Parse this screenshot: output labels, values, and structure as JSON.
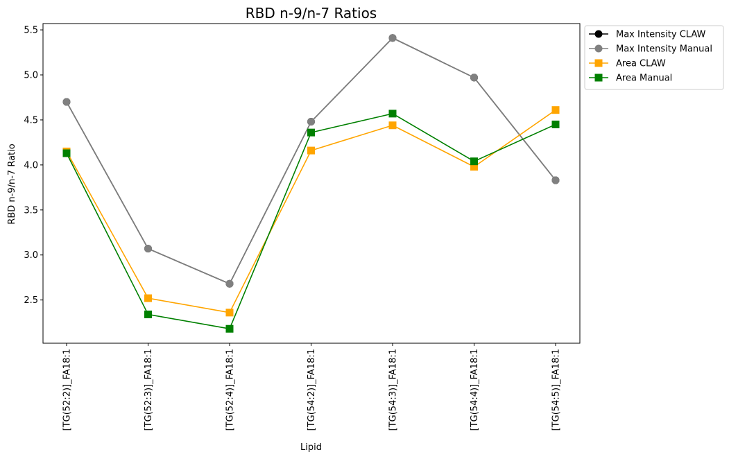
{
  "chart_data": {
    "type": "line",
    "title": "RBD n-9/n-7 Ratios",
    "xlabel": "Lipid",
    "ylabel": "RBD n-9/n-7 Ratio",
    "categories": [
      "[TG(52:2)]_FA18:1",
      "[TG(52:3)]_FA18:1",
      "[TG(52:4)]_FA18:1",
      "[TG(54:2)]_FA18:1",
      "[TG(54:3)]_FA18:1",
      "[TG(54:4)]_FA18:1",
      "[TG(54:5)]_FA18:1"
    ],
    "ylim": [
      2.02,
      5.57
    ],
    "yticks": [
      2.5,
      3.0,
      3.5,
      4.0,
      4.5,
      5.0,
      5.5
    ],
    "ytick_labels": [
      "2.5",
      "3.0",
      "3.5",
      "4.0",
      "4.5",
      "5.0",
      "5.5"
    ],
    "grid": false,
    "legend_position": "outside-top-right",
    "series": [
      {
        "name": "Max Intensity CLAW",
        "color": "#000000",
        "marker": "circle",
        "values": [
          4.7,
          3.07,
          2.68,
          4.48,
          5.41,
          4.97,
          3.83
        ]
      },
      {
        "name": "Max Intensity Manual",
        "color": "#808080",
        "marker": "circle",
        "values": [
          4.7,
          3.07,
          2.68,
          4.48,
          5.41,
          4.97,
          3.83
        ]
      },
      {
        "name": "Area CLAW",
        "color": "#ffa500",
        "marker": "square",
        "values": [
          4.15,
          2.52,
          2.36,
          4.16,
          4.44,
          3.98,
          4.61
        ]
      },
      {
        "name": "Area Manual",
        "color": "#008000",
        "marker": "square",
        "values": [
          4.13,
          2.34,
          2.18,
          4.36,
          4.57,
          4.04,
          4.45
        ]
      }
    ]
  }
}
